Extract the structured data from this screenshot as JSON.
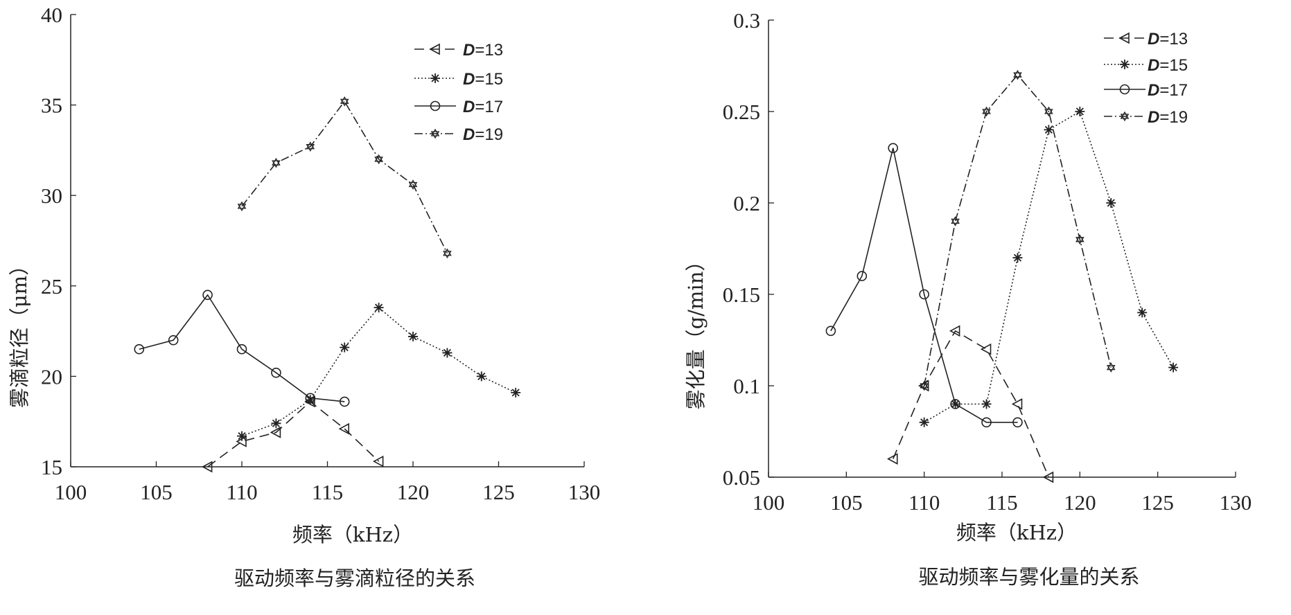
{
  "chart_data": [
    {
      "type": "line",
      "title": "驱动频率与雾滴粒径的关系",
      "xlabel": "频率（kHz）",
      "ylabel": "雾滴粒径（μm）",
      "xlim": [
        100,
        130
      ],
      "ylim": [
        15,
        40
      ],
      "xticks": [
        100,
        105,
        110,
        115,
        120,
        125,
        130
      ],
      "yticks": [
        15,
        20,
        25,
        30,
        35,
        40
      ],
      "ytick_labels": [
        "15",
        "20",
        "25",
        "30",
        "35",
        "40"
      ],
      "legend_position": "top-right",
      "series": [
        {
          "name": "D=13",
          "prefix": "D",
          "suffix": "=13",
          "marker": "triangle-left",
          "dash": "14,8",
          "x": [
            108,
            110,
            112,
            114,
            116,
            118
          ],
          "y": [
            15.0,
            16.4,
            16.9,
            18.6,
            17.1,
            15.3
          ]
        },
        {
          "name": "D=15",
          "prefix": "D",
          "suffix": "=15",
          "marker": "star",
          "dash": "2,3",
          "x": [
            110,
            112,
            114,
            116,
            118,
            120,
            122,
            124,
            126
          ],
          "y": [
            16.7,
            17.4,
            18.7,
            21.6,
            23.8,
            22.2,
            21.3,
            20.0,
            19.1
          ]
        },
        {
          "name": "D=17",
          "prefix": "D",
          "suffix": "=17",
          "marker": "circle",
          "dash": "",
          "x": [
            104,
            106,
            108,
            110,
            112,
            114,
            116
          ],
          "y": [
            21.5,
            22.0,
            24.5,
            21.5,
            20.2,
            18.8,
            18.6
          ]
        },
        {
          "name": "D=19",
          "prefix": "D",
          "suffix": "=19",
          "marker": "hexagram",
          "dash": "12,4,2,4",
          "x": [
            110,
            112,
            114,
            116,
            118,
            120,
            122
          ],
          "y": [
            29.4,
            31.8,
            32.7,
            35.2,
            32.0,
            30.6,
            26.8
          ]
        }
      ]
    },
    {
      "type": "line",
      "title": "驱动频率与雾化量的关系",
      "xlabel": "频率（kHz）",
      "ylabel": "雾化量（g/min）",
      "xlim": [
        100,
        130
      ],
      "ylim": [
        0.05,
        0.3
      ],
      "xticks": [
        100,
        105,
        110,
        115,
        120,
        125,
        130
      ],
      "yticks": [
        0.05,
        0.1,
        0.15,
        0.2,
        0.25,
        0.3
      ],
      "ytick_labels": [
        "0.05",
        "0.1",
        "0.15",
        "0.2",
        "0.25",
        "0.3"
      ],
      "legend_position": "top-right",
      "series": [
        {
          "name": "D=13",
          "prefix": "D",
          "suffix": "=13",
          "marker": "triangle-left",
          "dash": "14,8",
          "x": [
            108,
            110,
            112,
            114,
            116,
            118
          ],
          "y": [
            0.06,
            0.1,
            0.13,
            0.12,
            0.09,
            0.05
          ]
        },
        {
          "name": "D=15",
          "prefix": "D",
          "suffix": "=15",
          "marker": "star",
          "dash": "2,3",
          "x": [
            110,
            112,
            114,
            116,
            118,
            120,
            122,
            124,
            126
          ],
          "y": [
            0.08,
            0.09,
            0.09,
            0.17,
            0.24,
            0.25,
            0.2,
            0.14,
            0.11
          ]
        },
        {
          "name": "D=17",
          "prefix": "D",
          "suffix": "=17",
          "marker": "circle",
          "dash": "",
          "x": [
            104,
            106,
            108,
            110,
            112,
            114,
            116
          ],
          "y": [
            0.13,
            0.16,
            0.23,
            0.15,
            0.09,
            0.08,
            0.08
          ]
        },
        {
          "name": "D=19",
          "prefix": "D",
          "suffix": "=19",
          "marker": "hexagram",
          "dash": "12,4,2,4",
          "x": [
            110,
            112,
            114,
            116,
            118,
            120,
            122
          ],
          "y": [
            0.1,
            0.19,
            0.25,
            0.27,
            0.25,
            0.18,
            0.11
          ]
        }
      ]
    }
  ]
}
